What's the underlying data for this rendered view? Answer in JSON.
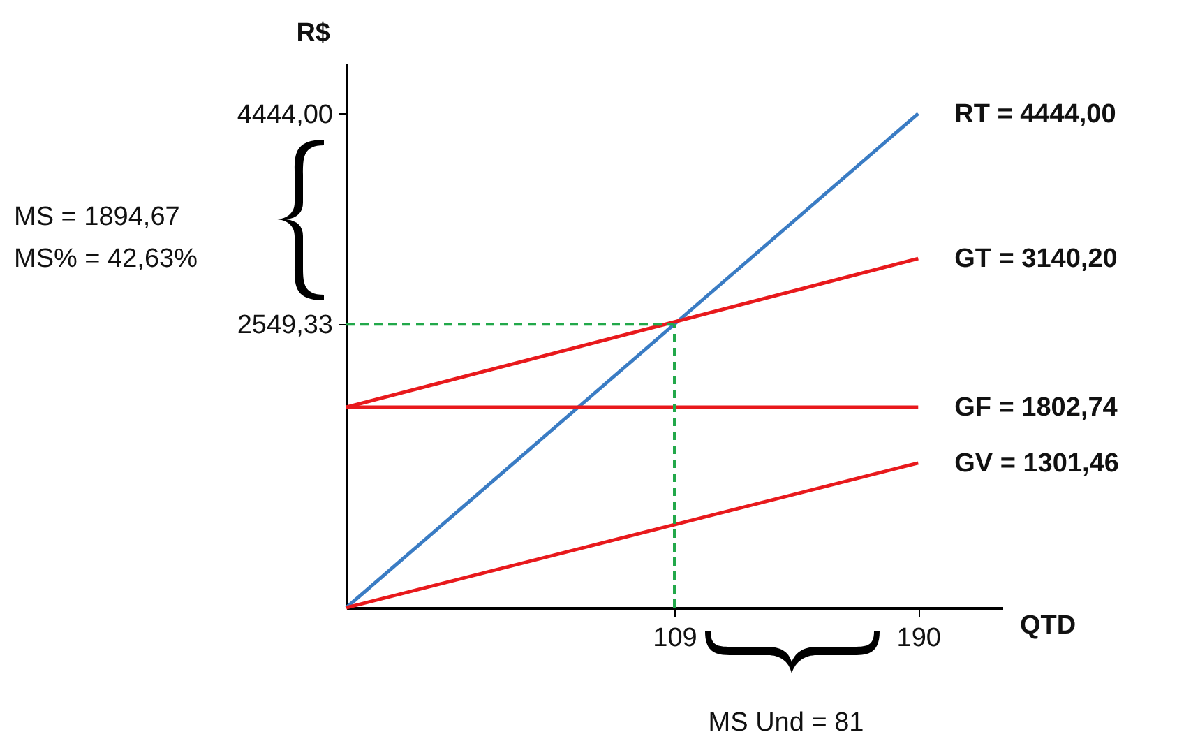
{
  "chart_data": {
    "type": "line",
    "xlabel": "QTD",
    "ylabel": "R$",
    "xlim": [
      0,
      218
    ],
    "ylim": [
      0,
      4900
    ],
    "xticks": [
      109,
      190
    ],
    "yticks": [
      {
        "value": 2549.33,
        "label": "2549,33"
      },
      {
        "value": 4444,
        "label": "4444,00"
      }
    ],
    "x": [
      0,
      190
    ],
    "grid": false,
    "legend": false,
    "marker": "none",
    "line_style": "solid",
    "series": [
      {
        "name": "RT = 4444,00",
        "color": "#3a7cc4",
        "values": [
          0,
          4444
        ]
      },
      {
        "name": "GT = 3140,20",
        "color": "#e8191c",
        "values": [
          1802.74,
          3140.2
        ]
      },
      {
        "name": "GF = 1802,74",
        "color": "#e8191c",
        "values": [
          1802.74,
          1802.74
        ]
      },
      {
        "name": "GV = 1301,46",
        "color": "#e8191c",
        "values": [
          0,
          1301.46
        ]
      }
    ],
    "ref_lines": [
      {
        "axis": "x",
        "value": 109,
        "color": "#22a84a",
        "line_style": "dashed"
      },
      {
        "axis": "y",
        "value": 2549.33,
        "color": "#22a84a",
        "line_style": "dashed"
      }
    ],
    "annotations": [
      "MS = 1894,67",
      "MS% = 42,63%",
      "MS Und = 81"
    ]
  }
}
